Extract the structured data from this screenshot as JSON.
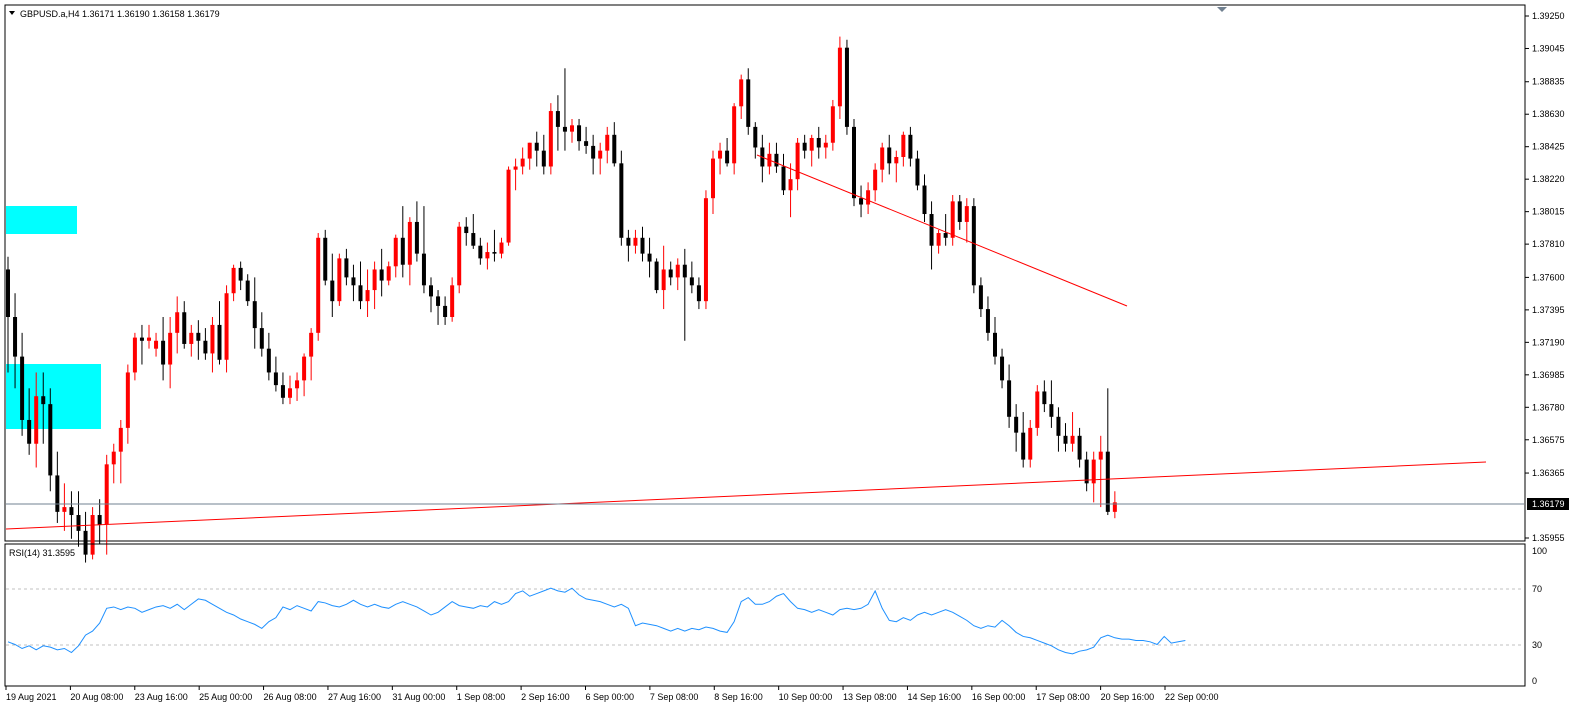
{
  "header": {
    "symbol_line": "GBPUSD.a,H4  1.36171 1.36190 1.36158 1.36179"
  },
  "rsi": {
    "label": "RSI(14) 31.3595",
    "levels": [
      "100",
      "70",
      "30",
      "0"
    ]
  },
  "colors": {
    "bull": "#ff0000",
    "bear": "#000000",
    "rsi_line": "#1e90ff",
    "zone": "#00ffff",
    "trendline": "#ff0000",
    "price_line": "#708090",
    "level_line": "#c0c0c0",
    "frame": "#000000",
    "current_price_bg": "#000000"
  },
  "chart_data": [
    {
      "type": "candlestick",
      "title": "GBPUSD.a,H4",
      "ylim": [
        1.35955,
        1.3925
      ],
      "y_tick_labels": [
        "1.39250",
        "1.39045",
        "1.38835",
        "1.38630",
        "1.38425",
        "1.38220",
        "1.38015",
        "1.37810",
        "1.37600",
        "1.37395",
        "1.37190",
        "1.36985",
        "1.36780",
        "1.36575",
        "1.36365",
        "1.35955"
      ],
      "current_price": "1.36179",
      "x_tick_labels": [
        "19 Aug 2021",
        "20 Aug 08:00",
        "23 Aug 16:00",
        "25 Aug 00:00",
        "26 Aug 08:00",
        "27 Aug 16:00",
        "31 Aug 00:00",
        "1 Sep 08:00",
        "2 Sep 16:00",
        "6 Sep 00:00",
        "7 Sep 08:00",
        "8 Sep 16:00",
        "10 Sep 00:00",
        "13 Sep 08:00",
        "14 Sep 16:00",
        "16 Sep 00:00",
        "17 Sep 08:00",
        "20 Sep 16:00",
        "22 Sep 00:00"
      ],
      "ohlc": [
        [
          1.3765,
          1.3773,
          1.37,
          1.3735
        ],
        [
          1.3735,
          1.375,
          1.369,
          1.371
        ],
        [
          1.371,
          1.3725,
          1.366,
          1.367
        ],
        [
          1.367,
          1.369,
          1.3648,
          1.3655
        ],
        [
          1.3655,
          1.37,
          1.364,
          1.3685
        ],
        [
          1.3685,
          1.37,
          1.3655,
          1.368
        ],
        [
          1.368,
          1.369,
          1.3625,
          1.3635
        ],
        [
          1.3635,
          1.365,
          1.3605,
          1.3612
        ],
        [
          1.3612,
          1.363,
          1.36,
          1.3615
        ],
        [
          1.3615,
          1.3625,
          1.3595,
          1.361
        ],
        [
          1.361,
          1.3625,
          1.359,
          1.36
        ],
        [
          1.36,
          1.3612,
          1.358,
          1.3585
        ],
        [
          1.3585,
          1.3615,
          1.3582,
          1.361
        ],
        [
          1.361,
          1.362,
          1.3592,
          1.3604
        ],
        [
          1.3604,
          1.3648,
          1.3585,
          1.3642
        ],
        [
          1.3642,
          1.3655,
          1.363,
          1.365
        ],
        [
          1.365,
          1.367,
          1.363,
          1.3665
        ],
        [
          1.3665,
          1.3705,
          1.3655,
          1.37
        ],
        [
          1.37,
          1.3725,
          1.3695,
          1.3722
        ],
        [
          1.3722,
          1.373,
          1.3705,
          1.372
        ],
        [
          1.372,
          1.373,
          1.3715,
          1.3722
        ],
        [
          1.3715,
          1.3725,
          1.371,
          1.372
        ],
        [
          1.372,
          1.3735,
          1.3695,
          1.3705
        ],
        [
          1.3705,
          1.3735,
          1.369,
          1.3725
        ],
        [
          1.3725,
          1.3748,
          1.3712,
          1.3738
        ],
        [
          1.3738,
          1.3745,
          1.3715,
          1.3718
        ],
        [
          1.3718,
          1.373,
          1.371,
          1.3725
        ],
        [
          1.3725,
          1.3733,
          1.3708,
          1.372
        ],
        [
          1.372,
          1.3728,
          1.3708,
          1.3712
        ],
        [
          1.3712,
          1.3735,
          1.37,
          1.373
        ],
        [
          1.373,
          1.3745,
          1.3705,
          1.3708
        ],
        [
          1.3708,
          1.3755,
          1.37,
          1.375
        ],
        [
          1.375,
          1.3768,
          1.3745,
          1.3766
        ],
        [
          1.3766,
          1.377,
          1.3752,
          1.3758
        ],
        [
          1.3758,
          1.3762,
          1.3742,
          1.3745
        ],
        [
          1.3745,
          1.376,
          1.3715,
          1.3728
        ],
        [
          1.3728,
          1.3738,
          1.371,
          1.3715
        ],
        [
          1.3715,
          1.3725,
          1.3695,
          1.37
        ],
        [
          1.37,
          1.371,
          1.3688,
          1.3692
        ],
        [
          1.3692,
          1.37,
          1.368,
          1.3684
        ],
        [
          1.3684,
          1.3698,
          1.368,
          1.369
        ],
        [
          1.369,
          1.37,
          1.3682,
          1.3695
        ],
        [
          1.3695,
          1.3712,
          1.3685,
          1.371
        ],
        [
          1.371,
          1.3728,
          1.3695,
          1.3725
        ],
        [
          1.3725,
          1.3788,
          1.372,
          1.3785
        ],
        [
          1.3785,
          1.379,
          1.3755,
          1.3758
        ],
        [
          1.3758,
          1.3775,
          1.3735,
          1.3745
        ],
        [
          1.3745,
          1.3775,
          1.3742,
          1.3772
        ],
        [
          1.3772,
          1.3778,
          1.3755,
          1.376
        ],
        [
          1.376,
          1.3768,
          1.3745,
          1.3755
        ],
        [
          1.3755,
          1.377,
          1.374,
          1.3745
        ],
        [
          1.3745,
          1.3765,
          1.3735,
          1.3752
        ],
        [
          1.3752,
          1.377,
          1.374,
          1.3765
        ],
        [
          1.3765,
          1.3778,
          1.3748,
          1.3758
        ],
        [
          1.3758,
          1.377,
          1.3755,
          1.3767
        ],
        [
          1.3767,
          1.3787,
          1.376,
          1.3785
        ],
        [
          1.3785,
          1.3805,
          1.376,
          1.3768
        ],
        [
          1.3768,
          1.3798,
          1.3755,
          1.3795
        ],
        [
          1.3795,
          1.3808,
          1.377,
          1.3775
        ],
        [
          1.3775,
          1.3805,
          1.375,
          1.3755
        ],
        [
          1.3755,
          1.376,
          1.3738,
          1.3748
        ],
        [
          1.3748,
          1.3752,
          1.373,
          1.3742
        ],
        [
          1.3742,
          1.3748,
          1.373,
          1.3735
        ],
        [
          1.3735,
          1.376,
          1.3732,
          1.3755
        ],
        [
          1.3755,
          1.3795,
          1.375,
          1.3792
        ],
        [
          1.3792,
          1.3798,
          1.378,
          1.3788
        ],
        [
          1.3788,
          1.38,
          1.3778,
          1.378
        ],
        [
          1.378,
          1.3785,
          1.3768,
          1.3772
        ],
        [
          1.3772,
          1.3782,
          1.3765,
          1.3776
        ],
        [
          1.3776,
          1.379,
          1.377,
          1.3775
        ],
        [
          1.3775,
          1.3785,
          1.3772,
          1.3782
        ],
        [
          1.3782,
          1.383,
          1.378,
          1.3828
        ],
        [
          1.3828,
          1.3835,
          1.3815,
          1.383
        ],
        [
          1.383,
          1.3842,
          1.3825,
          1.3835
        ],
        [
          1.3835,
          1.3845,
          1.3828,
          1.3845
        ],
        [
          1.3845,
          1.3852,
          1.383,
          1.384
        ],
        [
          1.384,
          1.385,
          1.3825,
          1.383
        ],
        [
          1.383,
          1.387,
          1.3825,
          1.3865
        ],
        [
          1.3865,
          1.3875,
          1.384,
          1.3855
        ],
        [
          1.3855,
          1.3892,
          1.384,
          1.3852
        ],
        [
          1.3852,
          1.386,
          1.3845,
          1.3856
        ],
        [
          1.3856,
          1.386,
          1.384,
          1.3846
        ],
        [
          1.3846,
          1.3855,
          1.3838,
          1.3843
        ],
        [
          1.3843,
          1.385,
          1.3825,
          1.3835
        ],
        [
          1.3835,
          1.3845,
          1.3825,
          1.384
        ],
        [
          1.384,
          1.3855,
          1.3832,
          1.385
        ],
        [
          1.385,
          1.3858,
          1.383,
          1.3832
        ],
        [
          1.3832,
          1.384,
          1.378,
          1.3785
        ],
        [
          1.3785,
          1.379,
          1.377,
          1.378
        ],
        [
          1.378,
          1.379,
          1.3775,
          1.3785
        ],
        [
          1.3785,
          1.3792,
          1.377,
          1.3775
        ],
        [
          1.3775,
          1.3785,
          1.376,
          1.377
        ],
        [
          1.377,
          1.3772,
          1.375,
          1.3752
        ],
        [
          1.3752,
          1.378,
          1.374,
          1.3765
        ],
        [
          1.3765,
          1.377,
          1.3755,
          1.376
        ],
        [
          1.376,
          1.3772,
          1.3752,
          1.3768
        ],
        [
          1.3768,
          1.3778,
          1.372,
          1.376
        ],
        [
          1.376,
          1.377,
          1.375,
          1.3755
        ],
        [
          1.3755,
          1.376,
          1.374,
          1.3745
        ],
        [
          1.3745,
          1.3815,
          1.374,
          1.381
        ],
        [
          1.381,
          1.384,
          1.38,
          1.3835
        ],
        [
          1.3835,
          1.3845,
          1.3825,
          1.384
        ],
        [
          1.384,
          1.3848,
          1.383,
          1.3832
        ],
        [
          1.3832,
          1.387,
          1.3825,
          1.3868
        ],
        [
          1.3868,
          1.3888,
          1.386,
          1.3885
        ],
        [
          1.3885,
          1.3892,
          1.385,
          1.3855
        ],
        [
          1.3855,
          1.3858,
          1.3835,
          1.3842
        ],
        [
          1.3842,
          1.385,
          1.382,
          1.383
        ],
        [
          1.383,
          1.3845,
          1.3825,
          1.3838
        ],
        [
          1.3838,
          1.3845,
          1.3826,
          1.383
        ],
        [
          1.383,
          1.3838,
          1.3812,
          1.3815
        ],
        [
          1.3815,
          1.3832,
          1.3798,
          1.3822
        ],
        [
          1.3822,
          1.3848,
          1.3815,
          1.3845
        ],
        [
          1.3845,
          1.385,
          1.3835,
          1.384
        ],
        [
          1.384,
          1.385,
          1.383,
          1.3848
        ],
        [
          1.3848,
          1.3855,
          1.3835,
          1.3842
        ],
        [
          1.3842,
          1.385,
          1.3835,
          1.3845
        ],
        [
          1.3845,
          1.3872,
          1.384,
          1.3868
        ],
        [
          1.3868,
          1.3912,
          1.386,
          1.3905
        ],
        [
          1.3905,
          1.391,
          1.385,
          1.3855
        ],
        [
          1.3855,
          1.386,
          1.3805,
          1.381
        ],
        [
          1.381,
          1.3818,
          1.3798,
          1.3806
        ],
        [
          1.3806,
          1.382,
          1.38,
          1.3815
        ],
        [
          1.3815,
          1.3832,
          1.3808,
          1.3828
        ],
        [
          1.3828,
          1.3845,
          1.382,
          1.3842
        ],
        [
          1.3842,
          1.385,
          1.3825,
          1.3832
        ],
        [
          1.3832,
          1.384,
          1.382,
          1.3836
        ],
        [
          1.3836,
          1.3852,
          1.383,
          1.385
        ],
        [
          1.385,
          1.3855,
          1.383,
          1.3835
        ],
        [
          1.3835,
          1.384,
          1.3815,
          1.3818
        ],
        [
          1.3818,
          1.3825,
          1.3795,
          1.38
        ],
        [
          1.38,
          1.3808,
          1.3765,
          1.378
        ],
        [
          1.378,
          1.379,
          1.3775,
          1.3788
        ],
        [
          1.3788,
          1.38,
          1.378,
          1.3785
        ],
        [
          1.3785,
          1.3812,
          1.378,
          1.3808
        ],
        [
          1.3808,
          1.3812,
          1.379,
          1.3795
        ],
        [
          1.3795,
          1.381,
          1.3782,
          1.3805
        ],
        [
          1.3805,
          1.381,
          1.375,
          1.3755
        ],
        [
          1.3755,
          1.376,
          1.3735,
          1.374
        ],
        [
          1.374,
          1.3748,
          1.372,
          1.3725
        ],
        [
          1.3725,
          1.3735,
          1.3705,
          1.371
        ],
        [
          1.371,
          1.3715,
          1.369,
          1.3695
        ],
        [
          1.3695,
          1.3705,
          1.3665,
          1.3672
        ],
        [
          1.3672,
          1.368,
          1.365,
          1.3662
        ],
        [
          1.3662,
          1.3675,
          1.364,
          1.3645
        ],
        [
          1.3645,
          1.367,
          1.364,
          1.3665
        ],
        [
          1.3665,
          1.3692,
          1.366,
          1.3688
        ],
        [
          1.3688,
          1.3695,
          1.3675,
          1.368
        ],
        [
          1.368,
          1.3695,
          1.3665,
          1.3672
        ],
        [
          1.3672,
          1.3678,
          1.365,
          1.366
        ],
        [
          1.366,
          1.3668,
          1.365,
          1.3655
        ],
        [
          1.3655,
          1.3675,
          1.365,
          1.366
        ],
        [
          1.366,
          1.3665,
          1.364,
          1.3645
        ],
        [
          1.3645,
          1.365,
          1.3625,
          1.363
        ],
        [
          1.363,
          1.365,
          1.3618,
          1.3645
        ],
        [
          1.3645,
          1.366,
          1.3615,
          1.365
        ],
        [
          1.365,
          1.369,
          1.361,
          1.3612
        ],
        [
          1.3612,
          1.3625,
          1.3608,
          1.3618
        ]
      ]
    },
    {
      "type": "line",
      "title": "RSI(14) 31.3595",
      "ylim": [
        0,
        100
      ],
      "levels": [
        30,
        70
      ],
      "values": [
        30,
        28,
        25,
        27,
        24,
        27,
        26,
        24,
        25,
        22,
        27,
        35,
        38,
        44,
        55,
        56,
        54,
        56,
        55,
        52,
        54,
        56,
        57,
        55,
        58,
        54,
        58,
        62,
        61,
        58,
        55,
        52,
        50,
        47,
        45,
        43,
        40,
        45,
        48,
        56,
        54,
        57,
        55,
        53,
        60,
        59,
        57,
        56,
        58,
        61,
        58,
        56,
        58,
        56,
        55,
        58,
        60,
        58,
        56,
        53,
        50,
        52,
        56,
        60,
        57,
        56,
        55,
        57,
        56,
        60,
        58,
        60,
        66,
        68,
        64,
        66,
        68,
        70,
        68,
        67,
        70,
        65,
        62,
        61,
        60,
        58,
        56,
        58,
        55,
        42,
        44,
        43,
        42,
        40,
        38,
        40,
        38,
        40,
        39,
        41,
        40,
        38,
        37,
        45,
        60,
        63,
        58,
        58,
        60,
        64,
        66,
        60,
        55,
        54,
        52,
        54,
        52,
        50,
        54,
        55,
        54,
        55,
        58,
        68,
        55,
        46,
        45,
        48,
        46,
        50,
        52,
        50,
        52,
        54,
        52,
        49,
        46,
        42,
        40,
        42,
        41,
        46,
        42,
        37,
        34,
        33,
        31,
        29,
        27,
        24,
        22,
        21,
        23,
        24,
        26,
        33,
        35,
        33,
        32,
        32,
        31,
        31,
        30,
        28,
        34,
        29,
        30,
        31
      ]
    }
  ]
}
